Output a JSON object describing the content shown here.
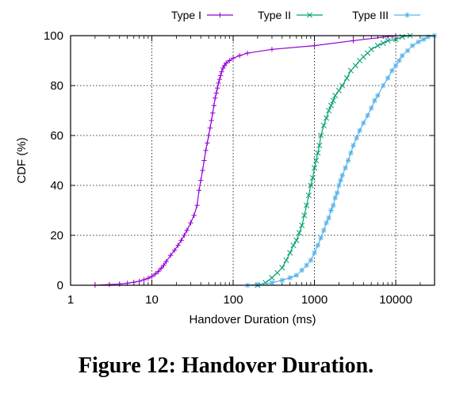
{
  "caption": "Figure 12: Handover Duration.",
  "chart_data": {
    "type": "line",
    "title": "",
    "xlabel": "Handover Duration (ms)",
    "ylabel": "CDF (%)",
    "xscale": "log",
    "xlim": [
      1,
      30000
    ],
    "ylim": [
      0,
      100
    ],
    "x_ticks": [
      1,
      10,
      100,
      1000,
      10000
    ],
    "x_tick_labels": [
      "1",
      "10",
      "100",
      "1000",
      "10000"
    ],
    "y_ticks": [
      0,
      20,
      40,
      60,
      80,
      100
    ],
    "y_tick_labels": [
      "0",
      "20",
      "40",
      "60",
      "80",
      "100"
    ],
    "grid": true,
    "legend_position": "top",
    "series": [
      {
        "name": "Type I",
        "color": "#9400d3",
        "marker": "plus",
        "x": [
          2,
          3,
          4,
          5,
          6,
          7,
          8,
          9,
          10,
          11,
          12,
          13,
          14,
          15,
          17,
          19,
          21,
          23,
          25,
          27,
          30,
          33,
          36,
          38,
          40,
          42,
          44,
          46,
          48,
          50,
          52,
          54,
          56,
          58,
          60,
          62,
          64,
          66,
          68,
          70,
          72,
          75,
          78,
          82,
          90,
          100,
          120,
          150,
          300,
          1000,
          3000,
          10000
        ],
        "y": [
          0,
          0.3,
          0.5,
          0.8,
          1.2,
          1.6,
          2.2,
          2.8,
          3.5,
          4.5,
          5.5,
          6.8,
          8,
          9.5,
          12,
          14,
          16,
          18,
          20,
          22,
          25,
          28,
          32,
          38,
          42,
          46,
          50,
          54,
          57,
          60,
          63,
          66,
          69,
          72,
          75,
          77,
          79,
          81,
          82.5,
          84,
          85.5,
          87,
          88,
          89,
          90,
          91,
          92,
          93,
          94.5,
          96,
          98,
          100
        ]
      },
      {
        "name": "Type II",
        "color": "#009e73",
        "marker": "cross",
        "x": [
          200,
          250,
          300,
          350,
          400,
          450,
          500,
          550,
          600,
          650,
          700,
          750,
          800,
          850,
          900,
          950,
          1000,
          1050,
          1100,
          1150,
          1200,
          1300,
          1400,
          1500,
          1600,
          1700,
          1800,
          2000,
          2200,
          2500,
          2800,
          3200,
          3600,
          4000,
          4500,
          5000,
          6000,
          7000,
          8000,
          10000,
          12000,
          15000
        ],
        "y": [
          0,
          1,
          3,
          5,
          7,
          10,
          13,
          16,
          18,
          21,
          24,
          28,
          32,
          36,
          40,
          43,
          47,
          50,
          53,
          56,
          60,
          64,
          67,
          70,
          72,
          74,
          76,
          78,
          80,
          83,
          86,
          88,
          90,
          91.5,
          93,
          94.5,
          96,
          97,
          98,
          98.5,
          99.5,
          100
        ]
      },
      {
        "name": "Type III",
        "color": "#56b4e9",
        "marker": "star",
        "x": [
          150,
          200,
          300,
          400,
          500,
          600,
          700,
          800,
          900,
          1000,
          1100,
          1200,
          1300,
          1400,
          1500,
          1600,
          1700,
          1800,
          1900,
          2000,
          2100,
          2200,
          2400,
          2600,
          2800,
          3000,
          3300,
          3600,
          4000,
          4500,
          5000,
          5500,
          6000,
          7000,
          8000,
          9000,
          10000,
          11000,
          12000,
          14000,
          16000,
          19000,
          22000,
          25000,
          30000
        ],
        "y": [
          0,
          0.3,
          1,
          2,
          3,
          4,
          6,
          8,
          10,
          13,
          16,
          19,
          22,
          25,
          27,
          30,
          32,
          35,
          37,
          40,
          42,
          44,
          47,
          50,
          53,
          56,
          59,
          62,
          65,
          68,
          71,
          74,
          76,
          80,
          83,
          86,
          88,
          90,
          92,
          94,
          96,
          97.5,
          98.5,
          99.5,
          100
        ]
      }
    ]
  }
}
